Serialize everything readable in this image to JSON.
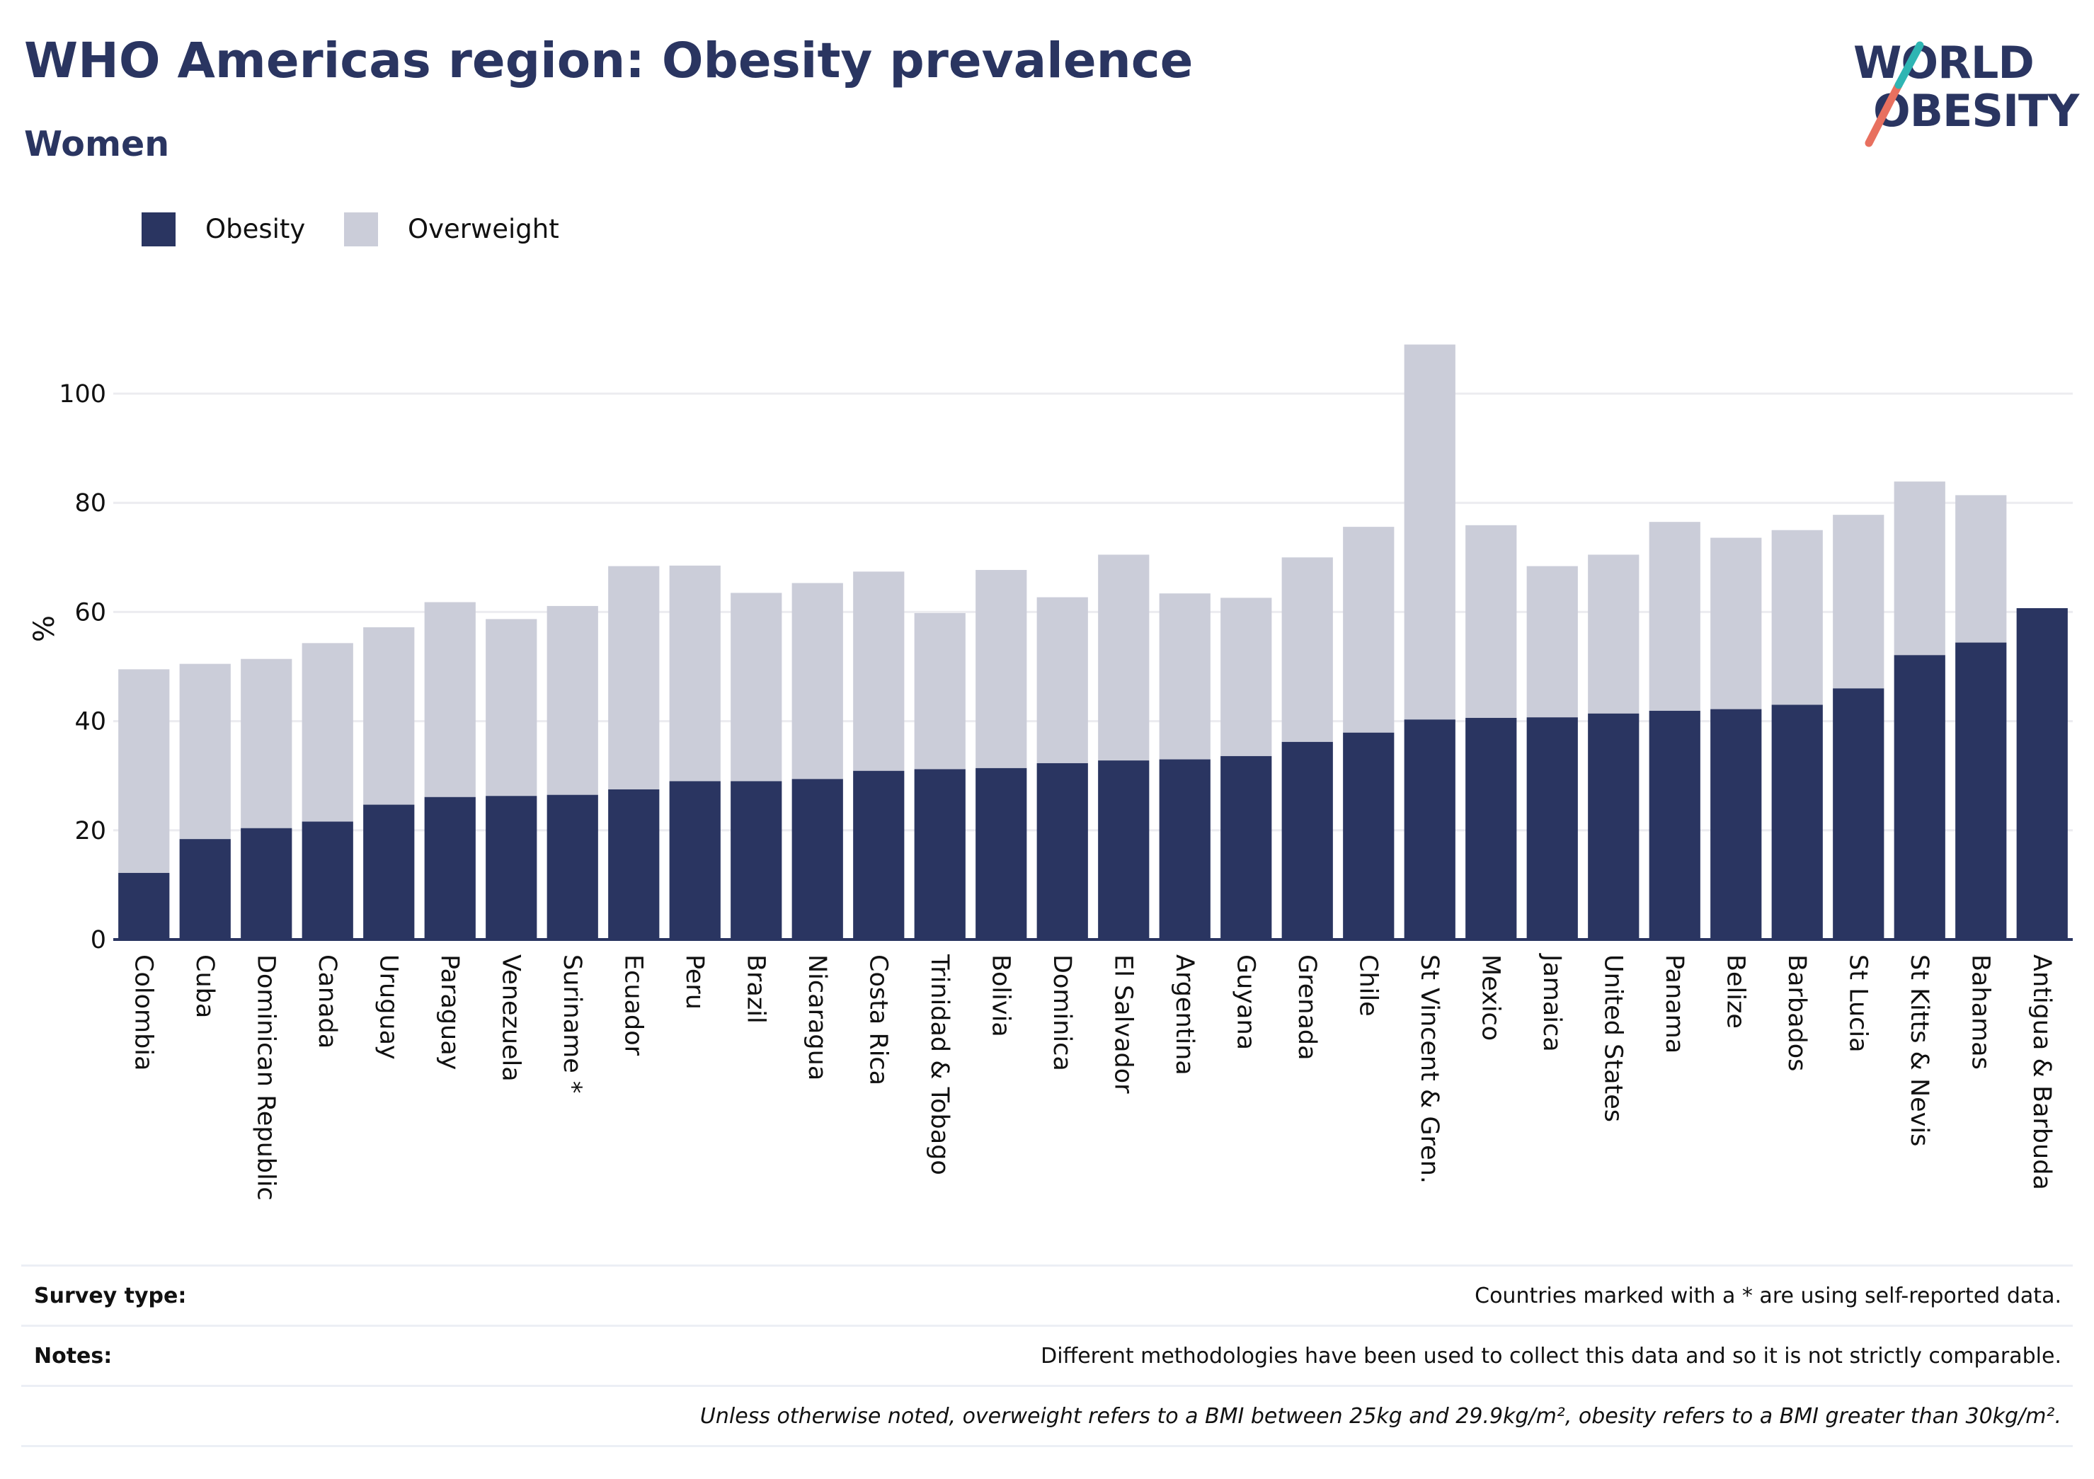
{
  "header": {
    "title": "WHO Americas region: Obesity prevalence",
    "subtitle": "Women"
  },
  "logo": {
    "line1": "WORLD",
    "line2": "OBESITY",
    "colors": {
      "text": "#2a3561",
      "slash_top": "#2fb5b3",
      "slash_bottom": "#e8705f"
    }
  },
  "colors": {
    "obesity": "#2a3561",
    "overweight": "#cbcdd9",
    "gridline": "#ececf0",
    "axis": "#2a3561"
  },
  "chart_data": {
    "type": "bar",
    "stacked": true,
    "title": "",
    "xlabel": "",
    "ylabel": "%",
    "ylim": [
      0,
      110
    ],
    "yticks": [
      0,
      20,
      40,
      60,
      80,
      100
    ],
    "grid": true,
    "legend_position": "top-left",
    "categories": [
      "Colombia",
      "Cuba",
      "Dominican Republic",
      "Canada",
      "Uruguay",
      "Paraguay",
      "Venezuela",
      "Suriname *",
      "Ecuador",
      "Peru",
      "Brazil",
      "Nicaragua",
      "Costa Rica",
      "Trinidad & Tobago",
      "Bolivia",
      "Dominica",
      "El Salvador",
      "Argentina",
      "Guyana",
      "Grenada",
      "Chile",
      "St Vincent & Gren.",
      "Mexico",
      "Jamaica",
      "United States",
      "Panama",
      "Belize",
      "Barbados",
      "St Lucia",
      "St Kitts & Nevis",
      "Bahamas",
      "Antigua & Barbuda"
    ],
    "series": [
      {
        "name": "Obesity",
        "color": "#2a3561",
        "values": [
          12.2,
          18.4,
          20.4,
          21.6,
          24.7,
          26.1,
          26.3,
          26.5,
          27.5,
          29.0,
          29.0,
          29.4,
          30.9,
          31.2,
          31.4,
          32.3,
          32.8,
          33.0,
          33.6,
          36.2,
          37.9,
          40.3,
          40.6,
          40.7,
          41.4,
          41.9,
          42.2,
          43.0,
          46.0,
          52.1,
          54.4,
          60.7
        ]
      },
      {
        "name": "Overweight",
        "color": "#cbcdd9",
        "values": [
          37.3,
          32.1,
          31.0,
          32.7,
          32.5,
          35.7,
          32.4,
          34.6,
          40.9,
          39.5,
          34.5,
          35.9,
          36.5,
          28.6,
          36.3,
          30.4,
          37.7,
          30.4,
          29.0,
          33.8,
          37.7,
          68.7,
          35.3,
          27.7,
          29.1,
          34.6,
          31.4,
          32.0,
          31.8,
          31.8,
          27.0,
          0
        ]
      }
    ]
  },
  "footer": {
    "rows": [
      {
        "key": "Survey type:",
        "value": "Countries marked with a * are using self-reported data."
      },
      {
        "key": "Notes:",
        "value": "Different methodologies have been used to collect this data and so it is not strictly comparable."
      },
      {
        "key": "",
        "value": "Unless otherwise noted, overweight refers to a BMI between 25kg and 29.9kg/m², obesity refers to a BMI greater than 30kg/m²."
      }
    ]
  }
}
